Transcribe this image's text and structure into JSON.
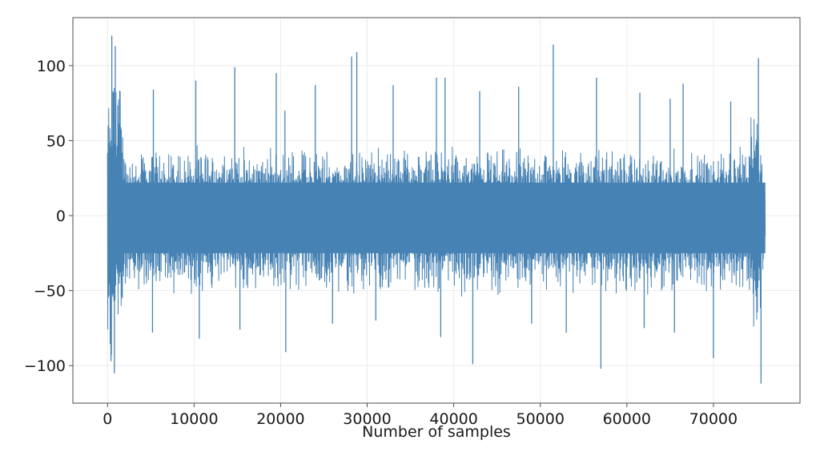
{
  "chart_data": {
    "type": "line",
    "title": "",
    "xlabel": "Number of samples",
    "ylabel": "",
    "xlim": [
      -4000,
      80000
    ],
    "ylim": [
      -125,
      132
    ],
    "grid": true,
    "legend": "none",
    "x_ticks": [
      0,
      10000,
      20000,
      30000,
      40000,
      50000,
      60000,
      70000
    ],
    "x_tick_labels": [
      "0",
      "10000",
      "20000",
      "30000",
      "40000",
      "50000",
      "60000",
      "70000"
    ],
    "y_ticks": [
      -100,
      -50,
      0,
      50,
      100
    ],
    "y_tick_labels": [
      "−100",
      "−50",
      "0",
      "50",
      "100"
    ],
    "series": [
      {
        "color": "#4682b4",
        "x_range": [
          0,
          76000
        ],
        "description_envelope": {
          "x": [
            0,
            500,
            1500,
            2000,
            5000,
            10000,
            20000,
            30000,
            40000,
            50000,
            60000,
            70000,
            74000,
            75000,
            76000
          ],
          "upper": [
            80,
            120,
            110,
            45,
            48,
            48,
            47,
            48,
            48,
            47,
            48,
            46,
            48,
            105,
            15
          ],
          "lower": [
            -90,
            -105,
            -85,
            -50,
            -55,
            -55,
            -55,
            -55,
            -55,
            -55,
            -55,
            -55,
            -60,
            -112,
            -25
          ]
        },
        "spikes": [
          {
            "x": 500,
            "y": 120
          },
          {
            "x": 900,
            "y": 113
          },
          {
            "x": 5300,
            "y": 84
          },
          {
            "x": 10200,
            "y": 90
          },
          {
            "x": 14700,
            "y": 99
          },
          {
            "x": 19500,
            "y": 95
          },
          {
            "x": 20500,
            "y": 70
          },
          {
            "x": 24000,
            "y": 87
          },
          {
            "x": 28200,
            "y": 106
          },
          {
            "x": 28800,
            "y": 109
          },
          {
            "x": 33000,
            "y": 87
          },
          {
            "x": 38000,
            "y": 92
          },
          {
            "x": 39000,
            "y": 92
          },
          {
            "x": 43000,
            "y": 83
          },
          {
            "x": 47500,
            "y": 86
          },
          {
            "x": 51500,
            "y": 114
          },
          {
            "x": 56500,
            "y": 92
          },
          {
            "x": 61500,
            "y": 82
          },
          {
            "x": 65000,
            "y": 78
          },
          {
            "x": 66500,
            "y": 88
          },
          {
            "x": 72000,
            "y": 76
          },
          {
            "x": 75200,
            "y": 105
          },
          {
            "x": 400,
            "y": -97
          },
          {
            "x": 800,
            "y": -105
          },
          {
            "x": 5200,
            "y": -78
          },
          {
            "x": 10600,
            "y": -82
          },
          {
            "x": 15300,
            "y": -76
          },
          {
            "x": 20600,
            "y": -91
          },
          {
            "x": 26000,
            "y": -72
          },
          {
            "x": 31000,
            "y": -70
          },
          {
            "x": 38500,
            "y": -81
          },
          {
            "x": 42200,
            "y": -99
          },
          {
            "x": 49000,
            "y": -72
          },
          {
            "x": 53000,
            "y": -78
          },
          {
            "x": 57000,
            "y": -102
          },
          {
            "x": 62000,
            "y": -75
          },
          {
            "x": 65500,
            "y": -78
          },
          {
            "x": 70000,
            "y": -95
          },
          {
            "x": 75500,
            "y": -112
          }
        ]
      }
    ]
  }
}
